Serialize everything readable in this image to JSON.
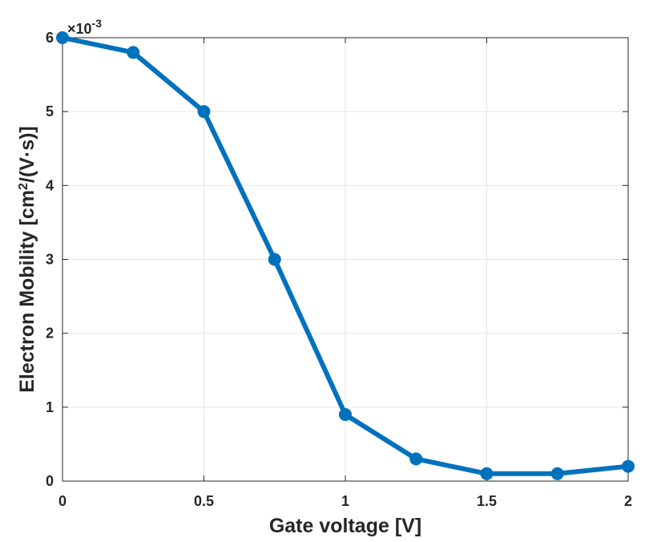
{
  "chart_data": {
    "type": "line",
    "x": [
      0,
      0.25,
      0.5,
      0.75,
      1,
      1.25,
      1.5,
      1.75,
      2
    ],
    "series": [
      {
        "values": [
          6.0,
          5.8,
          5.0,
          3.0,
          0.9,
          0.3,
          0.1,
          0.1,
          0.2
        ]
      }
    ],
    "xlabel": "Gate voltage [V]",
    "ylabel": {
      "main": "Electron Mobility [cm",
      "sup": "2",
      "end": "/(V·s)]"
    },
    "y_multiplier": {
      "base": "×10",
      "exp": "-3"
    },
    "xlim": [
      0,
      2
    ],
    "ylim": [
      0,
      6
    ],
    "xticks": [
      "0",
      "0.5",
      "1",
      "1.5",
      "2"
    ],
    "yticks": [
      "0",
      "1",
      "2",
      "3",
      "4",
      "5",
      "6"
    ],
    "grid": true,
    "legend": "none",
    "colors": {
      "line": "#0072BD",
      "axes": "#262626",
      "grid": "#e6e6e6"
    }
  }
}
